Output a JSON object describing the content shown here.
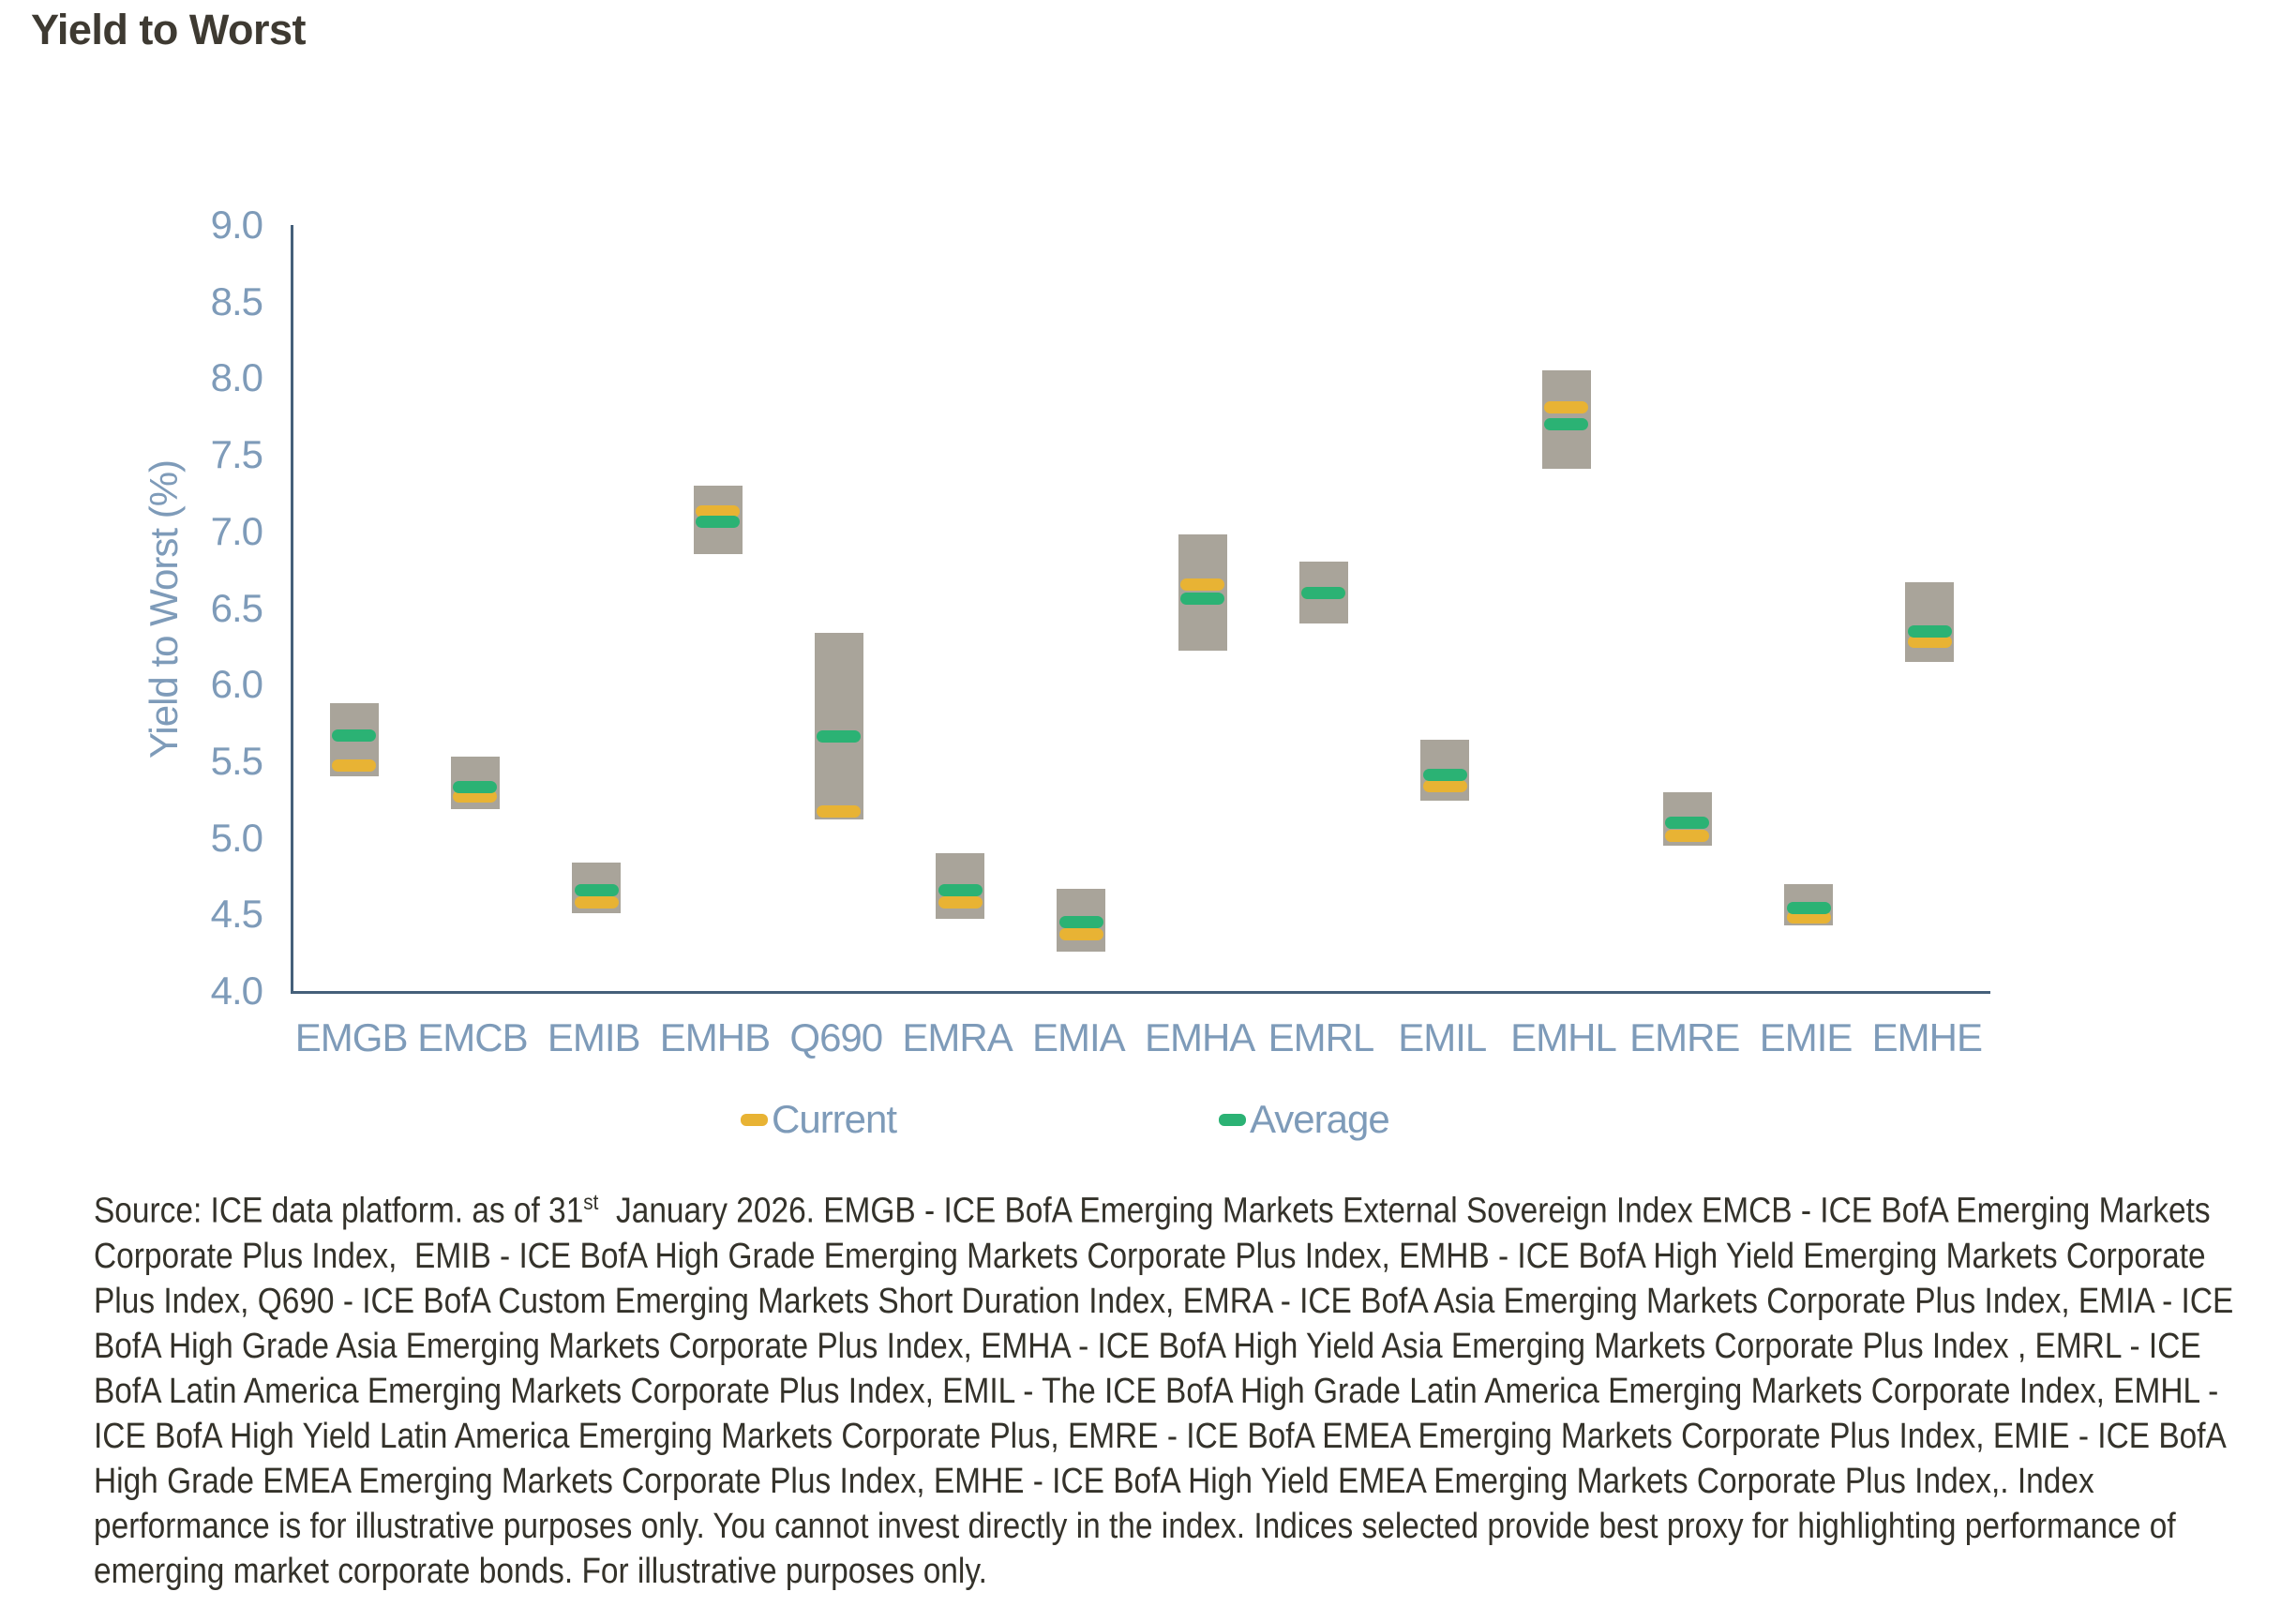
{
  "title": "Yield to Worst",
  "chart_data": {
    "type": "bar",
    "subtype": "floating-range-bars-with-markers",
    "title": "Yield to Worst",
    "xlabel": "",
    "ylabel": "Yield to Worst (%)",
    "ylim": [
      4.0,
      9.0
    ],
    "ytick_step": 0.5,
    "ytick_decimals": 1,
    "grid": false,
    "legend_position": "bottom",
    "categories": [
      "EMGB",
      "EMCB",
      "EMIB",
      "EMHB",
      "Q690",
      "EMRA",
      "EMIA",
      "EMHA",
      "EMRL",
      "EMIL",
      "EMHL",
      "EMRE",
      "EMIE",
      "EMHE"
    ],
    "series": [
      {
        "name": "Range",
        "role": "range",
        "color": "#a9a49a",
        "low": [
          5.4,
          5.19,
          4.51,
          6.85,
          5.12,
          4.47,
          4.26,
          6.22,
          6.4,
          5.24,
          7.41,
          4.95,
          4.43,
          6.15
        ],
        "high": [
          5.88,
          5.53,
          4.84,
          7.3,
          6.34,
          4.9,
          4.67,
          6.98,
          6.8,
          5.64,
          8.05,
          5.3,
          4.7,
          6.67
        ]
      },
      {
        "name": "Current",
        "role": "marker",
        "color": "#e8b334",
        "values": [
          5.47,
          5.27,
          4.58,
          7.13,
          5.17,
          4.58,
          4.37,
          6.65,
          6.6,
          5.34,
          7.81,
          5.01,
          4.48,
          6.28
        ]
      },
      {
        "name": "Average",
        "role": "marker",
        "color": "#2bb274",
        "values": [
          5.67,
          5.33,
          4.66,
          7.06,
          5.66,
          4.66,
          4.45,
          6.56,
          6.6,
          5.41,
          7.7,
          5.1,
          4.54,
          6.35
        ]
      }
    ]
  },
  "colors": {
    "range_bar": "#a9a49a",
    "current_marker": "#e8b334",
    "average_marker": "#2bb274",
    "axis_line": "#45607a",
    "axis_text": "#7e9bb9",
    "title_text": "#3e3a32",
    "footnote_text": "#34322a"
  },
  "footnote": {
    "line1_prefix": "Source: ICE data platform. as of 31",
    "line1_sup": "st",
    "line1_suffix": "  January 2026. EMGB - ICE BofA Emerging Markets External Sovereign Index EMCB - ICE BofA Emerging Markets",
    "lines": [
      "Corporate Plus Index,  EMIB - ICE BofA High Grade Emerging Markets Corporate Plus Index, EMHB - ICE BofA High Yield Emerging Markets Corporate",
      "Plus Index, Q690 - ICE BofA Custom Emerging Markets Short Duration Index, EMRA - ICE BofA Asia Emerging Markets Corporate Plus Index, EMIA - ICE",
      "BofA High Grade Asia Emerging Markets Corporate Plus Index, EMHA - ICE BofA High Yield Asia Emerging Markets Corporate Plus Index , EMRL - ICE",
      "BofA Latin America Emerging Markets Corporate Plus Index, EMIL - The ICE BofA High Grade Latin America Emerging Markets Corporate Index, EMHL -",
      "ICE BofA High Yield Latin America Emerging Markets Corporate Plus, EMRE - ICE BofA EMEA Emerging Markets Corporate Plus Index, EMIE - ICE BofA",
      "High Grade EMEA Emerging Markets Corporate Plus Index, EMHE - ICE BofA High Yield EMEA Emerging Markets Corporate Plus Index,. Index",
      "performance is for illustrative purposes only. You cannot invest directly in the index. Indices selected provide best proxy for highlighting performance of",
      "emerging market corporate bonds. For illustrative purposes only."
    ]
  }
}
